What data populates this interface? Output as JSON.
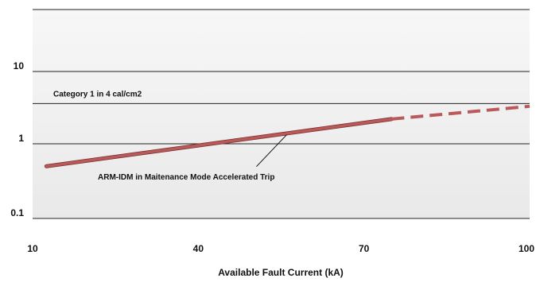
{
  "chart_data": {
    "type": "line",
    "title": "",
    "xlabel": "Available Fault Current (kA)",
    "ylabel": "",
    "y_scale": "log",
    "ylim": [
      0.1,
      50
    ],
    "xlim": [
      10,
      100
    ],
    "x_ticks": [
      "10",
      "40",
      "70",
      "100"
    ],
    "x_tick_values": [
      10,
      40,
      70,
      100
    ],
    "y_ticks": [
      "10",
      "1",
      "0.1"
    ],
    "y_tick_values": [
      10,
      1,
      0.1
    ],
    "grid": "horizontal",
    "band": {
      "label": "Category 1 in 4 cal/cm2",
      "threshold": 3.6
    },
    "series": [
      {
        "name": "ARM-IDM in Maitenance Mode Accelerated Trip",
        "color": "#b85a5a",
        "solid": {
          "x": [
            12.5,
            75
          ],
          "y": [
            0.5,
            2.2
          ]
        },
        "dashed": {
          "x": [
            75,
            100
          ],
          "y": [
            2.2,
            3.3
          ]
        }
      }
    ],
    "annotation": {
      "text": "ARM-IDM in Maitenance Mode Accelerated Trip",
      "points_to": {
        "x": 56,
        "y": 1.4
      }
    }
  }
}
